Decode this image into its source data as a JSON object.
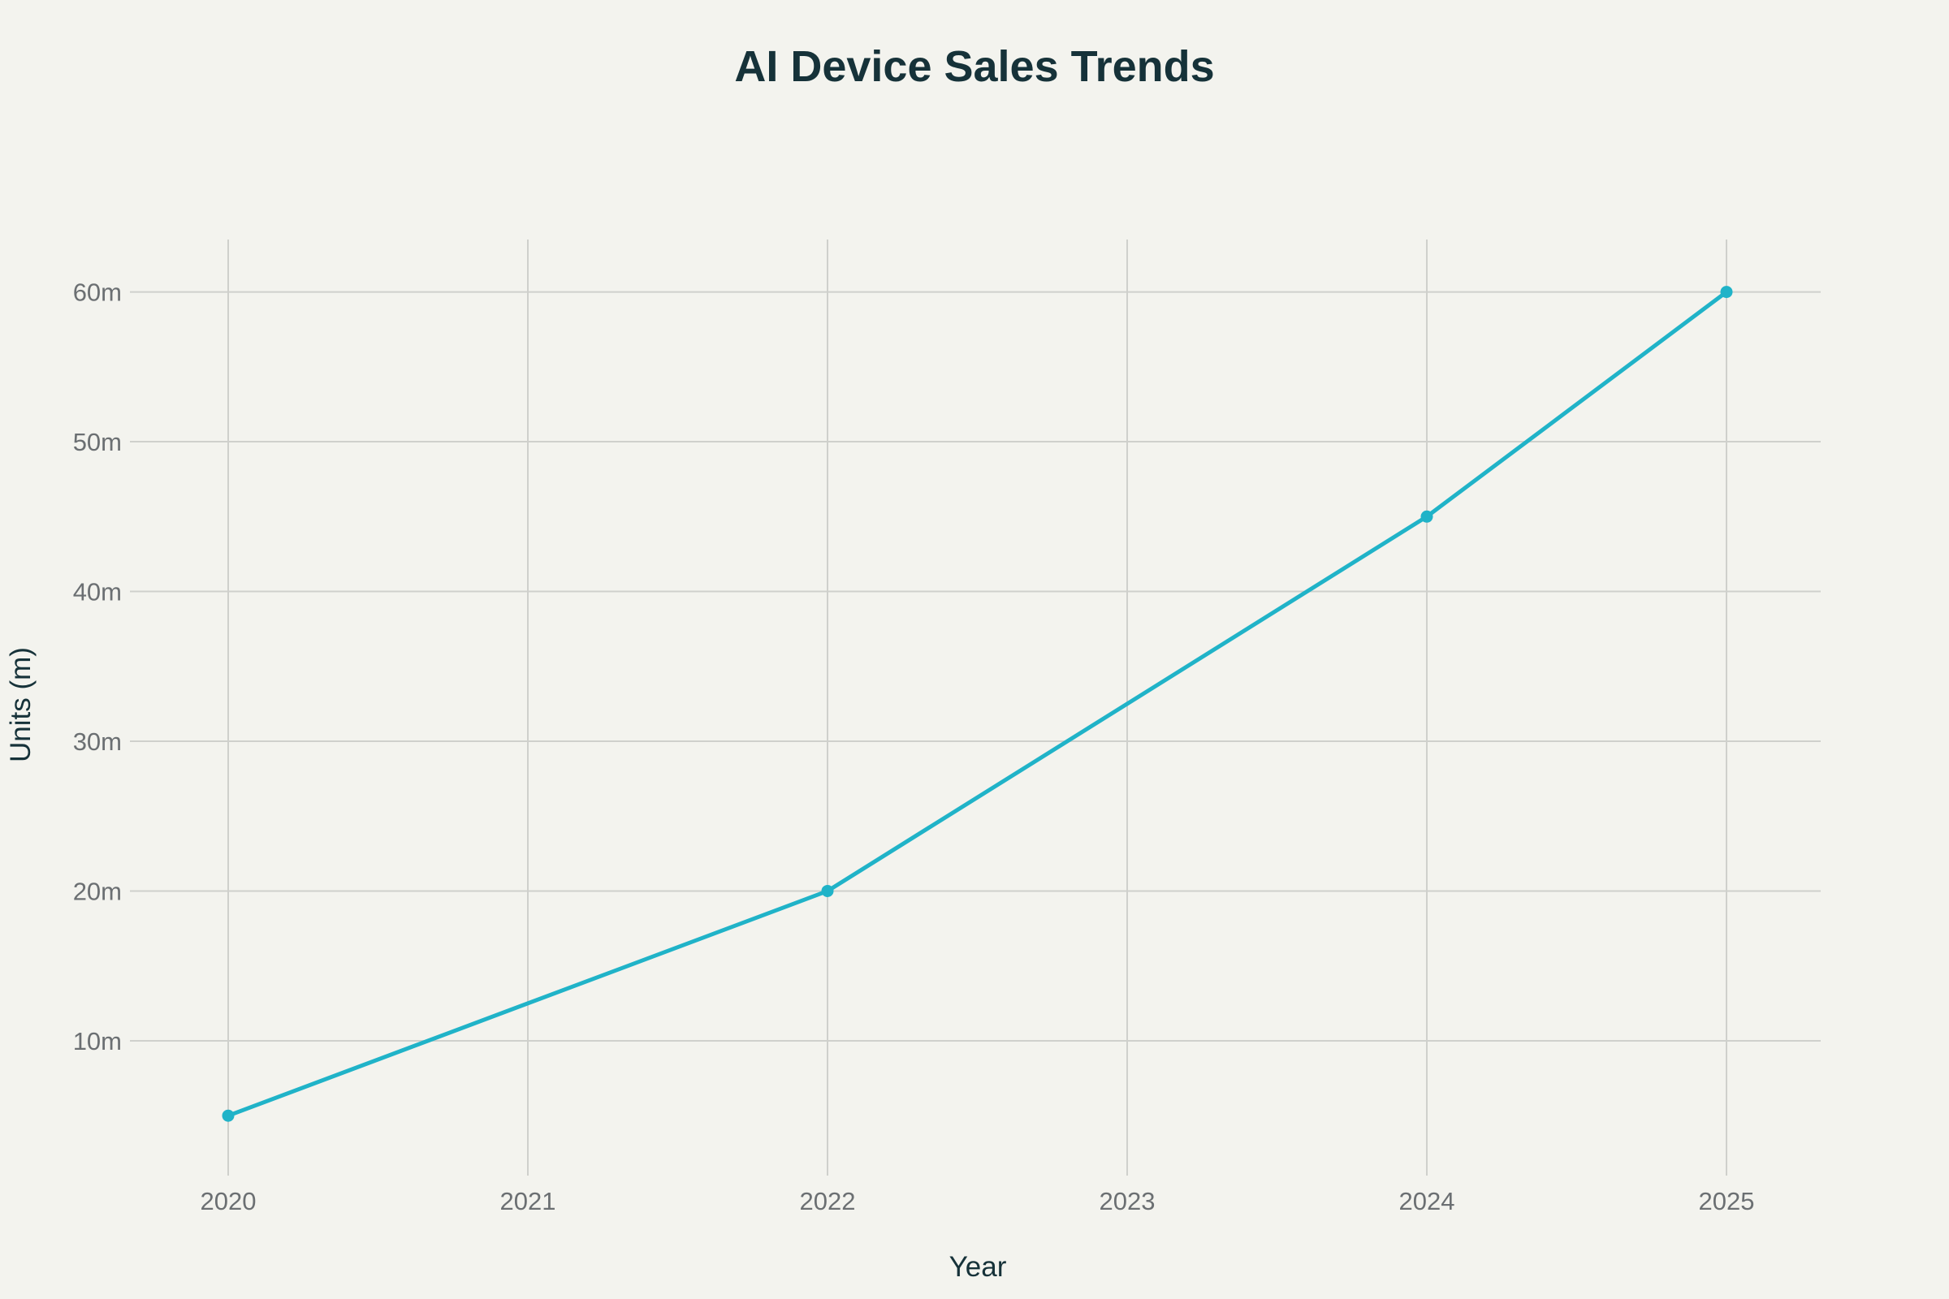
{
  "chart_data": {
    "type": "line",
    "title": "AI Device Sales Trends",
    "xlabel": "Year",
    "ylabel": "Units (m)",
    "categories": [
      "2020",
      "2021",
      "2022",
      "2023",
      "2024",
      "2025"
    ],
    "series": [
      {
        "color": "#20b3c8",
        "points": [
          {
            "x": "2020",
            "y": 5
          },
          {
            "x": "2022",
            "y": 20
          },
          {
            "x": "2024",
            "y": 45
          },
          {
            "x": "2025",
            "y": 60
          }
        ]
      }
    ],
    "y_ticks": [
      10,
      20,
      30,
      40,
      50,
      60
    ],
    "y_tick_labels": [
      "10m",
      "20m",
      "30m",
      "40m",
      "50m",
      "60m"
    ],
    "ylim": [
      1,
      63.5
    ],
    "grid": true,
    "legend": "none"
  }
}
